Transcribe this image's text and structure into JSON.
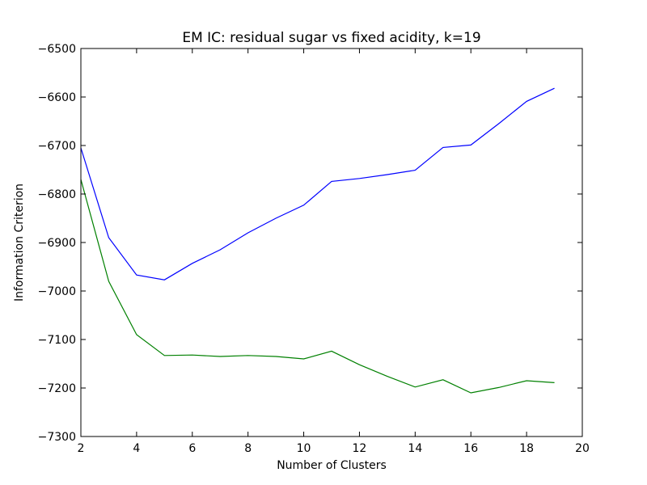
{
  "chart_data": {
    "type": "line",
    "title": "EM IC: residual sugar vs fixed acidity, k=19",
    "xlabel": "Number of Clusters",
    "ylabel": "Information Criterion",
    "xlim": [
      2,
      20
    ],
    "ylim": [
      -7300,
      -6500
    ],
    "xticks": [
      2,
      4,
      6,
      8,
      10,
      12,
      14,
      16,
      18,
      20
    ],
    "yticks": [
      -6500,
      -6600,
      -6700,
      -6800,
      -6900,
      -7000,
      -7100,
      -7200,
      -7300
    ],
    "grid": false,
    "legend": "none",
    "x": [
      2,
      3,
      4,
      5,
      6,
      7,
      8,
      9,
      10,
      11,
      12,
      13,
      14,
      15,
      16,
      17,
      18,
      19
    ],
    "series": [
      {
        "color": "#0000ff",
        "values": [
          -6705,
          -6890,
          -6967,
          -6977,
          -6943,
          -6915,
          -6880,
          -6850,
          -6823,
          -6774,
          -6768,
          -6760,
          -6751,
          -6704,
          -6699,
          -6655,
          -6609,
          -6582
        ]
      },
      {
        "color": "#008000",
        "values": [
          -6770,
          -6980,
          -7090,
          -7133,
          -7132,
          -7135,
          -7133,
          -7135,
          -7140,
          -7124,
          -7152,
          -7176,
          -7198,
          -7183,
          -7210,
          -7199,
          -7185,
          -7189
        ]
      }
    ]
  }
}
